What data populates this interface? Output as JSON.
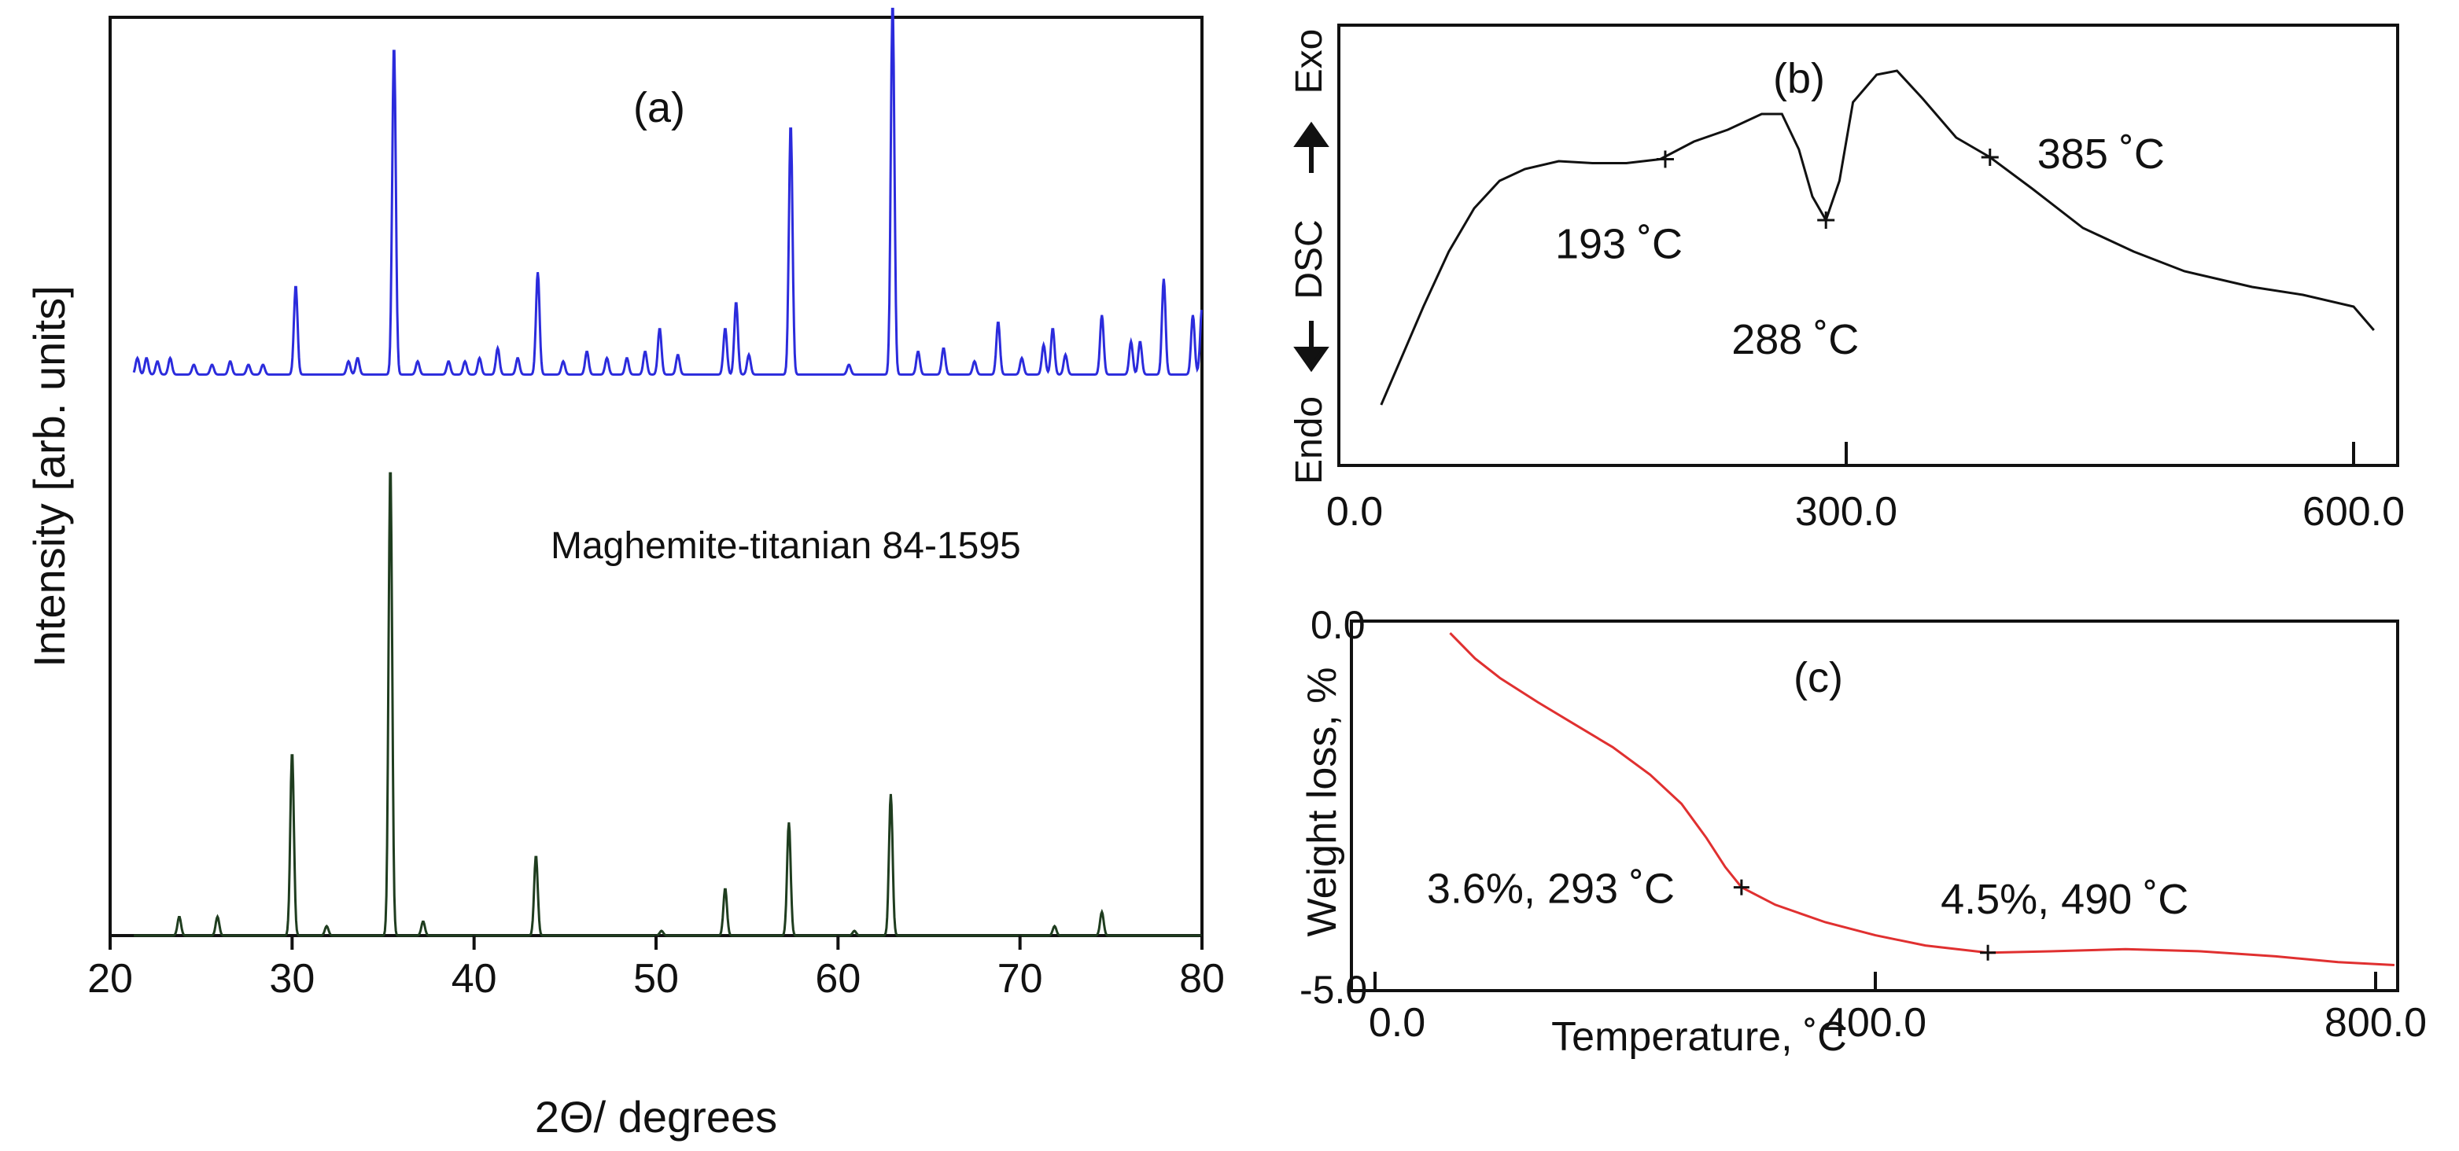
{
  "chart_data": [
    {
      "id": "a",
      "type": "line",
      "panel_label": "(a)",
      "xlabel": "2Θ/ degrees",
      "ylabel": "Intensity [arb. units]",
      "xlim": [
        20,
        80
      ],
      "x_ticks": [
        20,
        30,
        40,
        50,
        60,
        70,
        80
      ],
      "x_tick_labels": [
        "20",
        "30",
        "40",
        "50",
        "60",
        "70",
        "80"
      ],
      "reference_label": "Maghemite-titanian 84-1595",
      "colors": {
        "measured": "#2b2bdc",
        "reference": "#1f3d1f"
      },
      "series": [
        {
          "name": "measured",
          "baseline": 0.08,
          "peaks": [
            [
              21.5,
              0.05
            ],
            [
              22.0,
              0.05
            ],
            [
              22.6,
              0.04
            ],
            [
              23.3,
              0.05
            ],
            [
              24.6,
              0.03
            ],
            [
              25.6,
              0.03
            ],
            [
              26.6,
              0.04
            ],
            [
              27.6,
              0.03
            ],
            [
              28.4,
              0.03
            ],
            [
              30.2,
              0.27
            ],
            [
              33.1,
              0.04
            ],
            [
              33.6,
              0.05
            ],
            [
              35.6,
              1.0
            ],
            [
              36.9,
              0.04
            ],
            [
              38.6,
              0.04
            ],
            [
              39.5,
              0.04
            ],
            [
              40.3,
              0.05
            ],
            [
              41.3,
              0.08
            ],
            [
              42.4,
              0.05
            ],
            [
              43.5,
              0.31
            ],
            [
              44.9,
              0.04
            ],
            [
              46.2,
              0.07
            ],
            [
              47.3,
              0.05
            ],
            [
              48.4,
              0.05
            ],
            [
              49.4,
              0.07
            ],
            [
              50.2,
              0.14
            ],
            [
              51.2,
              0.06
            ],
            [
              53.8,
              0.14
            ],
            [
              54.4,
              0.22
            ],
            [
              55.1,
              0.06
            ],
            [
              57.4,
              0.76
            ],
            [
              60.6,
              0.03
            ],
            [
              63.0,
              1.13
            ],
            [
              64.4,
              0.07
            ],
            [
              65.8,
              0.08
            ],
            [
              67.5,
              0.04
            ],
            [
              68.8,
              0.16
            ],
            [
              70.1,
              0.05
            ],
            [
              71.3,
              0.09
            ],
            [
              71.8,
              0.14
            ],
            [
              72.5,
              0.06
            ],
            [
              74.5,
              0.18
            ],
            [
              76.1,
              0.1
            ],
            [
              76.6,
              0.1
            ],
            [
              77.9,
              0.29
            ],
            [
              79.5,
              0.18
            ],
            [
              80.0,
              0.2
            ]
          ]
        },
        {
          "name": "reference",
          "baseline": 0.0,
          "peaks": [
            [
              23.8,
              0.04
            ],
            [
              25.9,
              0.04
            ],
            [
              30.0,
              0.39
            ],
            [
              31.9,
              0.02
            ],
            [
              35.4,
              1.0
            ],
            [
              37.2,
              0.03
            ],
            [
              43.4,
              0.17
            ],
            [
              50.3,
              0.01
            ],
            [
              53.8,
              0.1
            ],
            [
              57.3,
              0.24
            ],
            [
              60.9,
              0.01
            ],
            [
              62.9,
              0.3
            ],
            [
              71.9,
              0.02
            ],
            [
              74.5,
              0.05
            ]
          ]
        }
      ]
    },
    {
      "id": "b",
      "type": "line",
      "panel_label": "(b)",
      "ylabel": "Endo ↓ DSC ↑ Exo",
      "ylabel_parts": {
        "low": "Endo",
        "mid": "DSC",
        "high": "Exo"
      },
      "xlim": [
        0,
        600
      ],
      "x_ticks": [
        0,
        300,
        600
      ],
      "x_tick_labels": [
        "0.0",
        "300.0",
        "600.0"
      ],
      "curve": [
        [
          25,
          0.05
        ],
        [
          35,
          0.15
        ],
        [
          50,
          0.3
        ],
        [
          65,
          0.44
        ],
        [
          80,
          0.55
        ],
        [
          95,
          0.62
        ],
        [
          110,
          0.65
        ],
        [
          130,
          0.67
        ],
        [
          150,
          0.665
        ],
        [
          170,
          0.665
        ],
        [
          190,
          0.675
        ],
        [
          210,
          0.72
        ],
        [
          230,
          0.75
        ],
        [
          250,
          0.79
        ],
        [
          262,
          0.79
        ],
        [
          272,
          0.7
        ],
        [
          280,
          0.58
        ],
        [
          288,
          0.52
        ],
        [
          296,
          0.62
        ],
        [
          304,
          0.82
        ],
        [
          318,
          0.89
        ],
        [
          330,
          0.9
        ],
        [
          345,
          0.83
        ],
        [
          365,
          0.73
        ],
        [
          385,
          0.68
        ],
        [
          410,
          0.6
        ],
        [
          440,
          0.5
        ],
        [
          470,
          0.44
        ],
        [
          500,
          0.39
        ],
        [
          540,
          0.35
        ],
        [
          570,
          0.33
        ],
        [
          600,
          0.3
        ],
        [
          612,
          0.24
        ]
      ],
      "markers": [
        {
          "x": 193,
          "y": 0.675,
          "label": "193 ˚C"
        },
        {
          "x": 288,
          "y": 0.52,
          "label": "288 ˚C"
        },
        {
          "x": 385,
          "y": 0.68,
          "label": "385 ˚C"
        }
      ]
    },
    {
      "id": "c",
      "type": "line",
      "panel_label": "(c)",
      "xlabel": "Temperature, ˚C",
      "ylabel": "Weight loss, %",
      "xlim": [
        0,
        800
      ],
      "ylim": [
        -5.0,
        0.0
      ],
      "x_ticks": [
        0,
        400,
        800
      ],
      "x_tick_labels": [
        "0.0",
        "400.0",
        "800.0"
      ],
      "y_tick_labels": [
        "0.0",
        "-5.0"
      ],
      "color": "#e03030",
      "curve": [
        [
          60,
          -0.1
        ],
        [
          80,
          -0.45
        ],
        [
          100,
          -0.72
        ],
        [
          130,
          -1.05
        ],
        [
          160,
          -1.36
        ],
        [
          190,
          -1.67
        ],
        [
          220,
          -2.05
        ],
        [
          245,
          -2.45
        ],
        [
          265,
          -2.92
        ],
        [
          280,
          -3.32
        ],
        [
          293,
          -3.6
        ],
        [
          320,
          -3.84
        ],
        [
          360,
          -4.08
        ],
        [
          400,
          -4.26
        ],
        [
          440,
          -4.4
        ],
        [
          490,
          -4.5
        ],
        [
          540,
          -4.48
        ],
        [
          600,
          -4.45
        ],
        [
          660,
          -4.48
        ],
        [
          720,
          -4.55
        ],
        [
          770,
          -4.63
        ],
        [
          815,
          -4.67
        ]
      ],
      "markers": [
        {
          "x": 293,
          "y": -3.6,
          "label": "3.6%, 293 ˚C"
        },
        {
          "x": 490,
          "y": -4.5,
          "label": "4.5%, 490 ˚C"
        }
      ]
    }
  ]
}
